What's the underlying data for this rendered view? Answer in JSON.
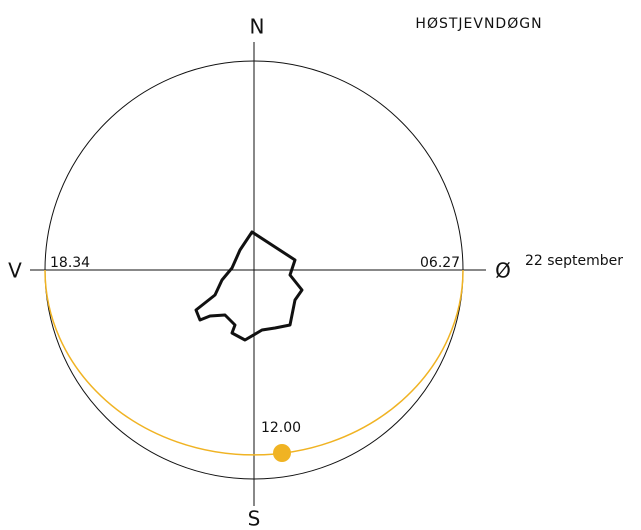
{
  "title": "HØSTJEVNDØGN",
  "date": "22 september",
  "compass": {
    "north": "N",
    "south": "S",
    "west": "V",
    "east": "Ø"
  },
  "times": {
    "sunset": "18.34",
    "sunrise": "06.27",
    "noon": "12.00"
  }
}
